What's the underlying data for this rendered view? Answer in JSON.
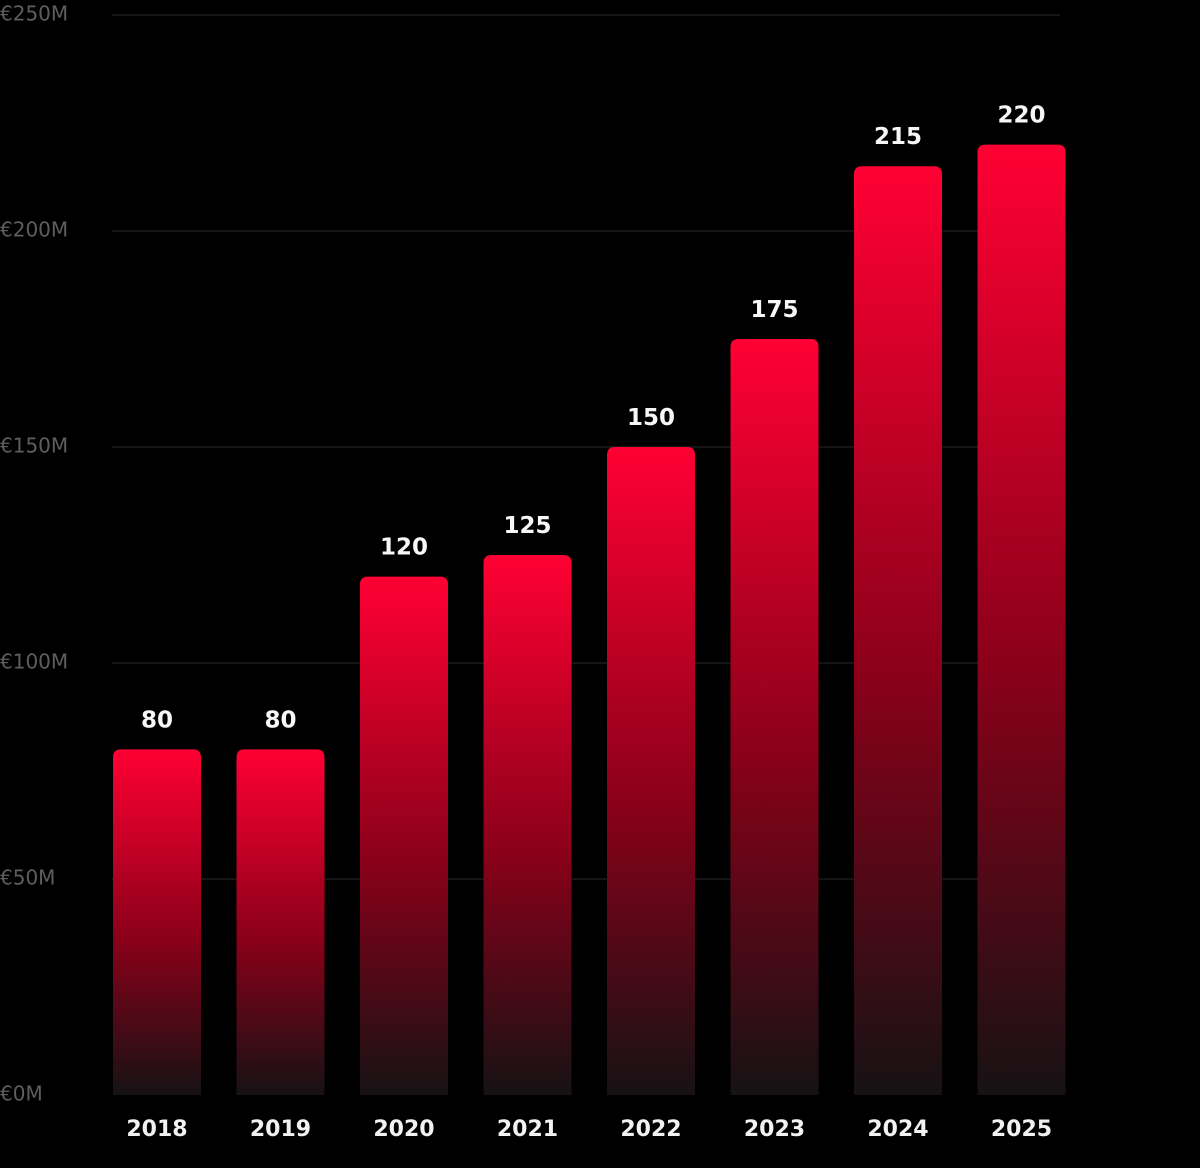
{
  "chart_data": {
    "type": "bar",
    "categories": [
      "2018",
      "2019",
      "2020",
      "2021",
      "2022",
      "2023",
      "2024",
      "2025"
    ],
    "values": [
      80,
      80,
      120,
      125,
      150,
      175,
      215,
      220
    ],
    "data_labels": [
      "80",
      "80",
      "120",
      "125",
      "150",
      "175",
      "215",
      "220"
    ],
    "y_ticks": [
      {
        "value": 0,
        "label": "€0M"
      },
      {
        "value": 50,
        "label": "€50M"
      },
      {
        "value": 100,
        "label": "€100M"
      },
      {
        "value": 150,
        "label": "€150M"
      },
      {
        "value": 200,
        "label": "€200M"
      },
      {
        "value": 250,
        "label": "€250M"
      }
    ],
    "ylim": [
      0,
      250
    ],
    "grid": true,
    "legend": "none",
    "colors": {
      "background": "#000000",
      "bar_top": "#ff0033",
      "bar_mid": "#8a0019",
      "bar_bottom": "#161214",
      "grid": "#2a2a2a",
      "y_tick_text": "#5e5e5e",
      "x_tick_text": "#f2f2f2",
      "data_label_text": "#f7f7f7"
    }
  }
}
